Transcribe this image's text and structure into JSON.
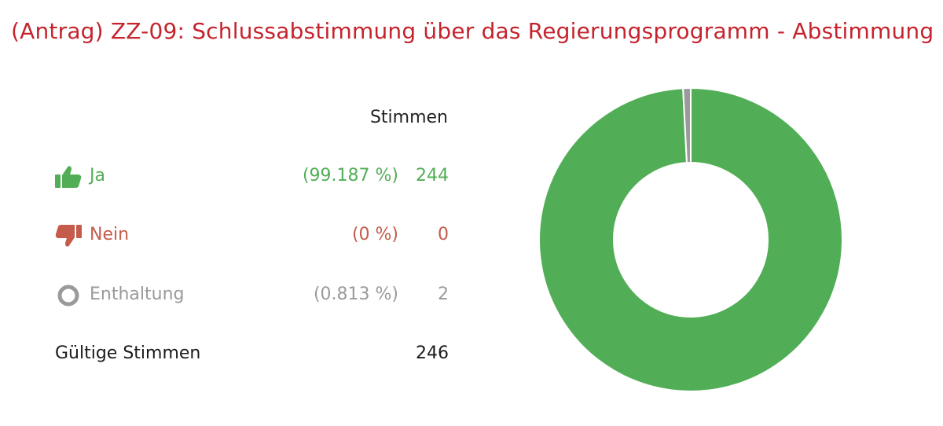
{
  "title": "(Antrag) ZZ-09: Schlussabstimmung über das Regierungsprogramm - Abstimmung",
  "table": {
    "header": "Stimmen",
    "rows": [
      {
        "key": "ja",
        "label": "Ja",
        "percent": "(99.187 %)",
        "count": "244",
        "icon": "thumbs-up-icon",
        "color": "#52ae56"
      },
      {
        "key": "nein",
        "label": "Nein",
        "percent": "(0 %)",
        "count": "0",
        "icon": "thumbs-down-icon",
        "color": "#c45b4b"
      },
      {
        "key": "enthaltung",
        "label": "Enthaltung",
        "percent": "(0.813 %)",
        "count": "2",
        "icon": "ring-icon",
        "color": "#9a9a9a"
      }
    ],
    "valid": {
      "label": "Gültige Stimmen",
      "count": "246"
    }
  },
  "chart_data": {
    "type": "pie",
    "donut": true,
    "categories": [
      "Ja",
      "Nein",
      "Enthaltung"
    ],
    "values": [
      244,
      0,
      2
    ],
    "colors": [
      "#52ae56",
      "#c45b4b",
      "#9a9a9a"
    ],
    "start_angle_deg": 0,
    "direction": "clockwise"
  }
}
